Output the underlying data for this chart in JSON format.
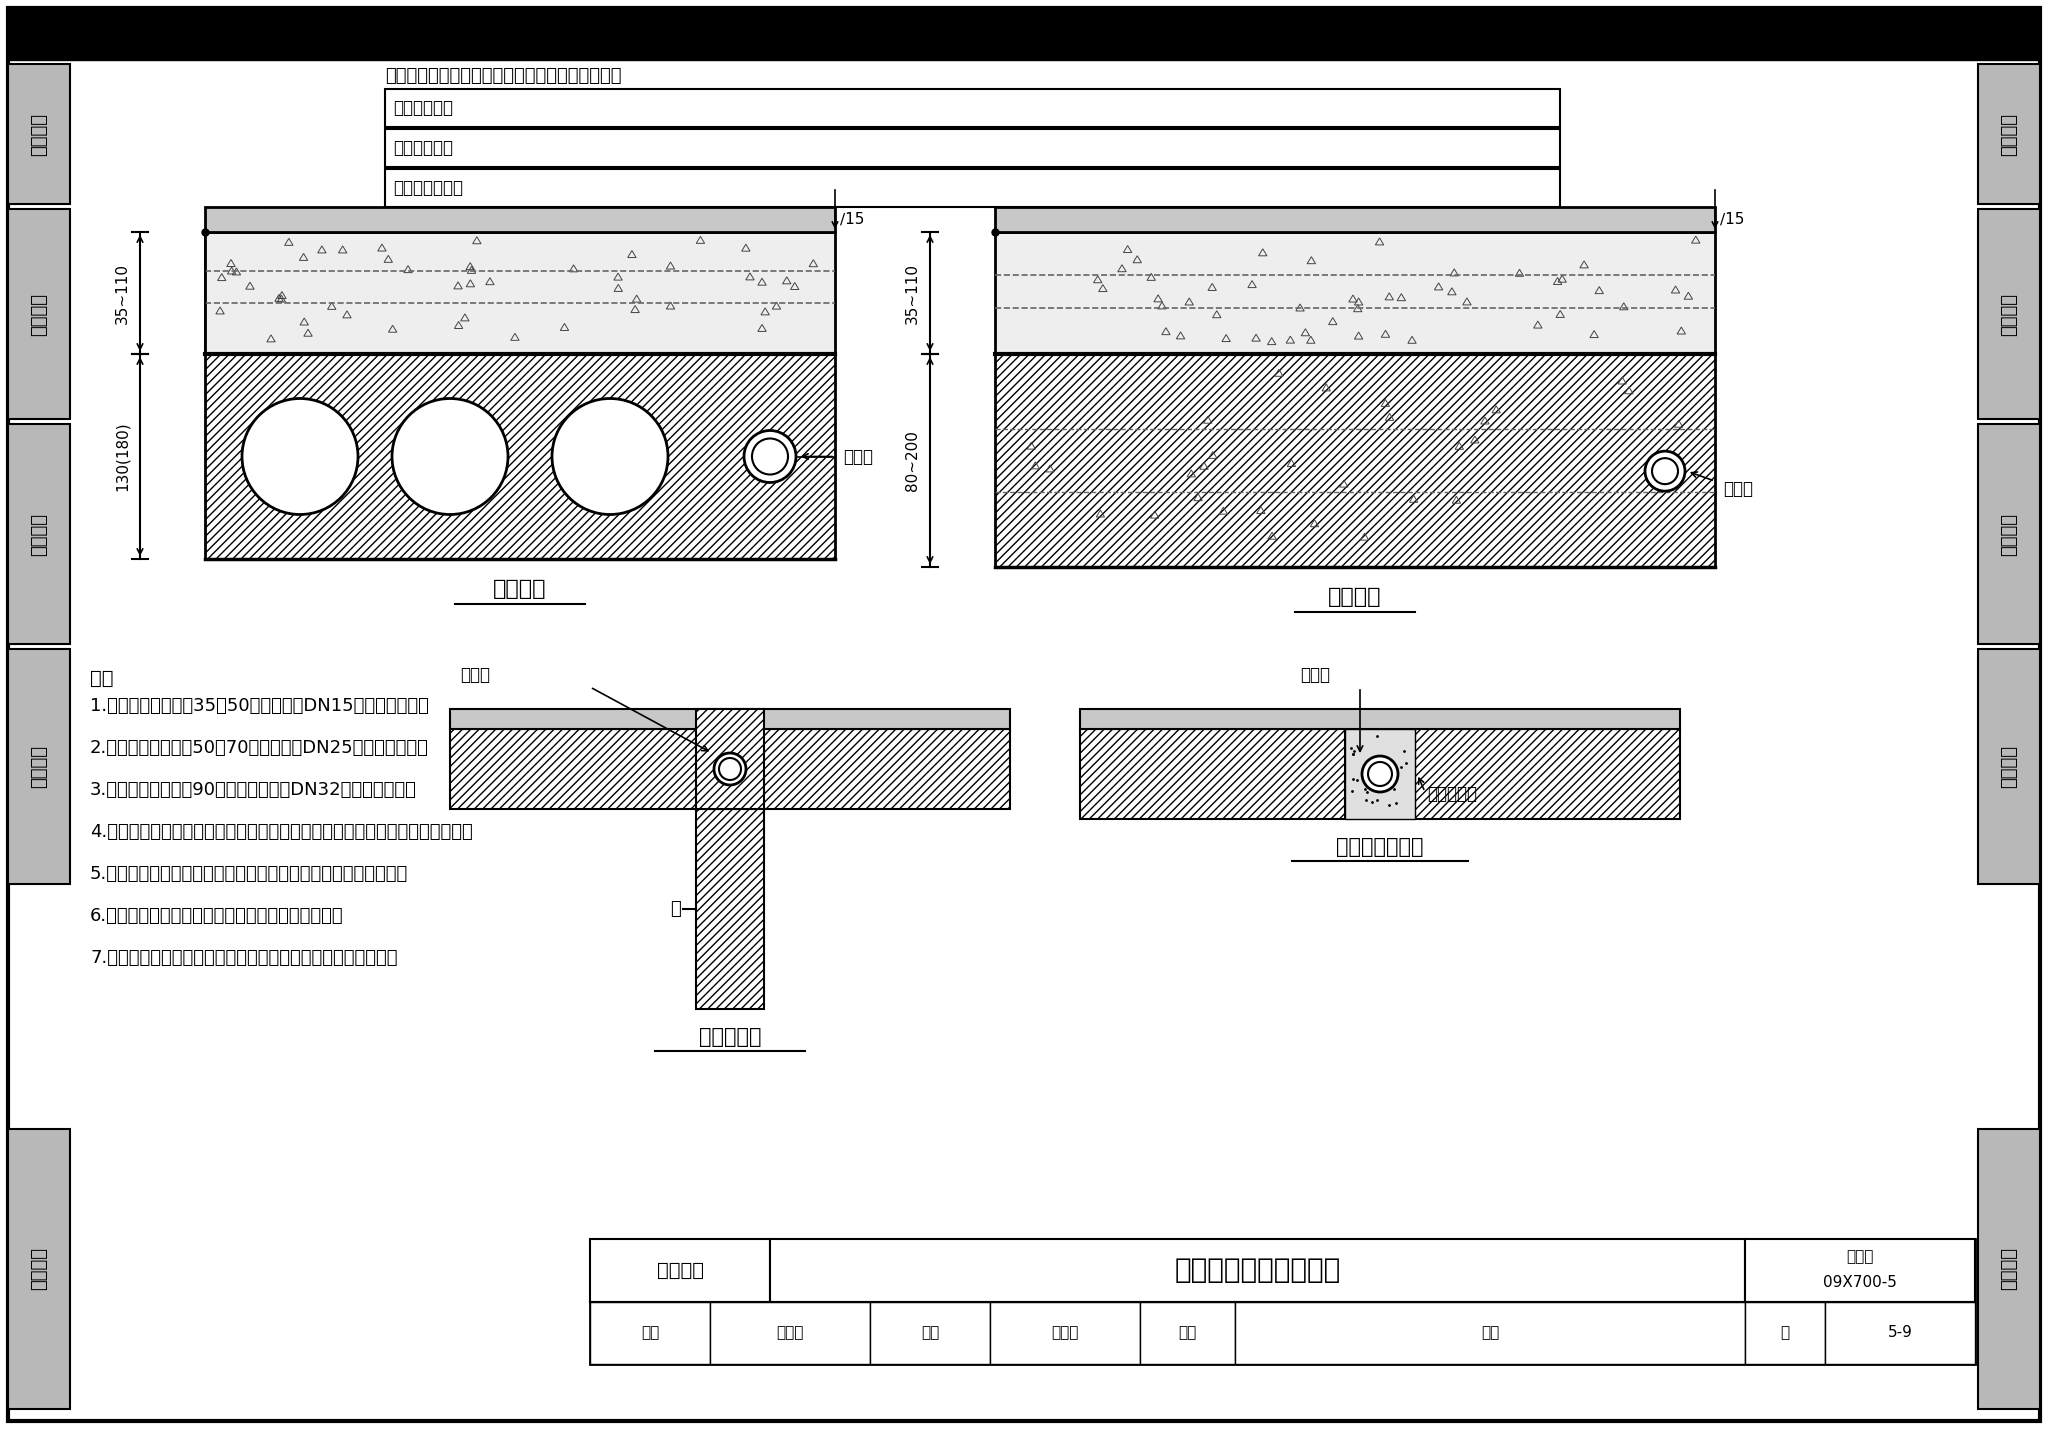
{
  "bg_color": "#ffffff",
  "title_text": "保护管暗敷设施工要求",
  "subtitle_left": "缆线敷设",
  "atlas_no": "09X700-5",
  "page": "5-9",
  "layer_labels": [
    "各类地面（水磨石、油漆、地板、地毯、石材等）",
    "水泥沙浆抚面",
    "水泥焦渣垫层",
    "钉筋混凝土樈板"
  ],
  "dim_left_top": "35~110",
  "dim_left_bottom": "130(180)",
  "dim_right_top": "35~110",
  "dim_right_bottom": "80~200",
  "dim_15": "∕15",
  "label_precast": "预制樈板",
  "label_cast": "现浇樈板",
  "label_pipe": "保护管",
  "label_wall": "墙",
  "label_fine_concrete": "细石混凝土",
  "label_along_seam": "沿板缝敷设",
  "label_along_center": "沿实心板缝敷设",
  "notes_title": "注：",
  "notes": [
    "1.　楼面垫层厚度为35～50时，可敷设DN15及以下保护管。",
    "2.　楼面垫层厚度为50～70时，可敷设DN25及以下保护管。",
    "3.　楼面垫层厚度为90以上时，可敷设DN32及以下保护管。",
    "4.　敷设在钉筋混凝土现浇樈板内的保护管的最大外径不宜大于板厚的１／３。",
    "5.　以上管路敷设时只考虑一个交叉，若无交叉管径可相应增大。",
    "6.　消防控制设备的线路暗敷应满足消防规范要求。",
    "7.　保护管包括钙管、中型刚性塑料管、可扰金属电线保护管。"
  ],
  "sidebar_sections": [
    "机房工程",
    "供电电源",
    "缆线敷设",
    "设备安装",
    "防雷接地"
  ],
  "page_label": "页"
}
